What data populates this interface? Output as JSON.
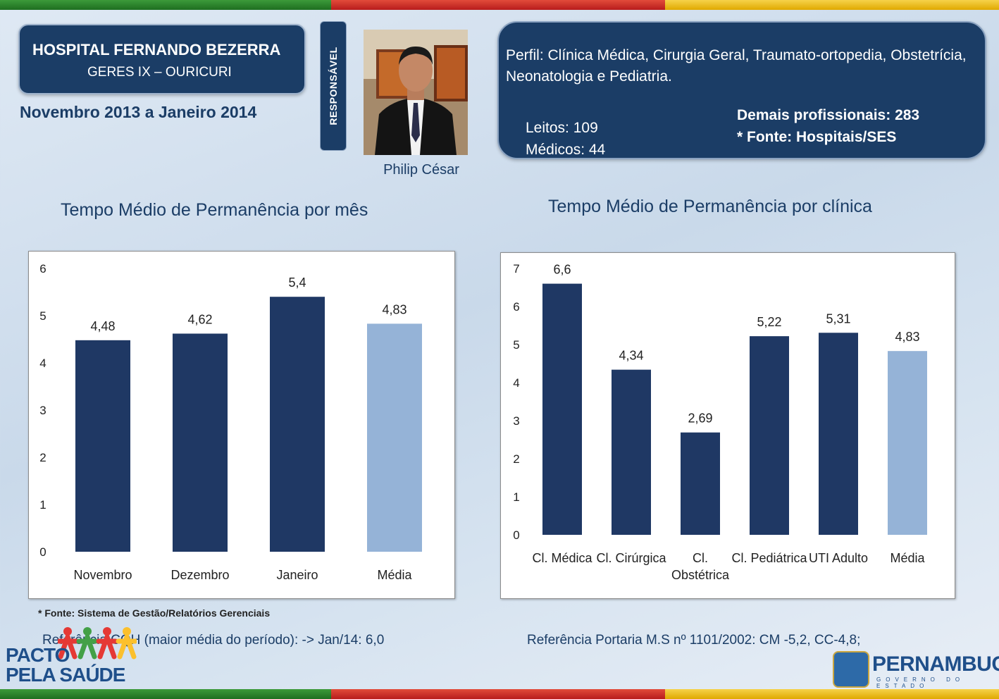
{
  "header": {
    "hospital": "HOSPITAL FERNANDO BEZERRA",
    "geres": "GERES IX – OURICURI",
    "period": "Novembro 2013 a Janeiro 2014",
    "responsavel_label": "RESPONSÁVEL",
    "responsavel_name": "Philip César"
  },
  "profile": {
    "perfil": "Perfil: Clínica Médica, Cirurgia Geral, Traumato-ortopedia, Obstetrícia, Neonatologia e Pediatria.",
    "leitos": "Leitos: 109",
    "medicos": "Médicos: 44",
    "demais": "Demais profissionais: 283",
    "fonte": "* Fonte: Hospitais/SES"
  },
  "colors": {
    "navy": "#1b3d66",
    "bar_dark": "#1f3864",
    "bar_light": "#95b3d7"
  },
  "chart_data": [
    {
      "type": "bar",
      "title": "Tempo Médio de Permanência por mês",
      "categories": [
        "Novembro",
        "Dezembro",
        "Janeiro",
        "Média"
      ],
      "values": [
        4.48,
        4.62,
        5.4,
        4.83
      ],
      "value_labels": [
        "4,48",
        "4,62",
        "5,4",
        "4,83"
      ],
      "highlight": [
        false,
        false,
        false,
        true
      ],
      "ylim": [
        0,
        6
      ],
      "yticks": [
        "0",
        "1",
        "2",
        "3",
        "4",
        "5",
        "6"
      ]
    },
    {
      "type": "bar",
      "title": "Tempo Médio de Permanência por clínica",
      "categories": [
        "Cl. Médica",
        "Cl. Cirúrgica",
        "Cl. Obstétrica",
        "Cl. Pediátrica",
        "UTI Adulto",
        "Média"
      ],
      "category_lines": [
        [
          "Cl. Médica"
        ],
        [
          "Cl. Cirúrgica"
        ],
        [
          "Cl.",
          "Obstétrica"
        ],
        [
          "Cl. Pediátrica"
        ],
        [
          "UTI Adulto"
        ],
        [
          "Média"
        ]
      ],
      "values": [
        6.6,
        4.34,
        2.69,
        5.22,
        5.31,
        4.83
      ],
      "value_labels": [
        "6,6",
        "4,34",
        "2,69",
        "5,22",
        "5,31",
        "4,83"
      ],
      "highlight": [
        false,
        false,
        false,
        false,
        false,
        true
      ],
      "ylim": [
        0,
        7
      ],
      "yticks": [
        "0",
        "1",
        "2",
        "3",
        "4",
        "5",
        "6",
        "7"
      ]
    }
  ],
  "footer": {
    "note": "* Fonte: Sistema de Gestão/Relatórios Gerenciais",
    "ref_left": "Referência CQH (maior média do período): -> Jan/14: 6,0",
    "ref_right": "Referência Portaria M.S nº 1101/2002: CM -5,2, CC-4,8;",
    "pacto_line1": "PACTO",
    "pacto_line2": "PELA SAÚDE",
    "pernambuco": "PERNAMBUCO",
    "governo": "GOVERNO DO ESTADO"
  }
}
